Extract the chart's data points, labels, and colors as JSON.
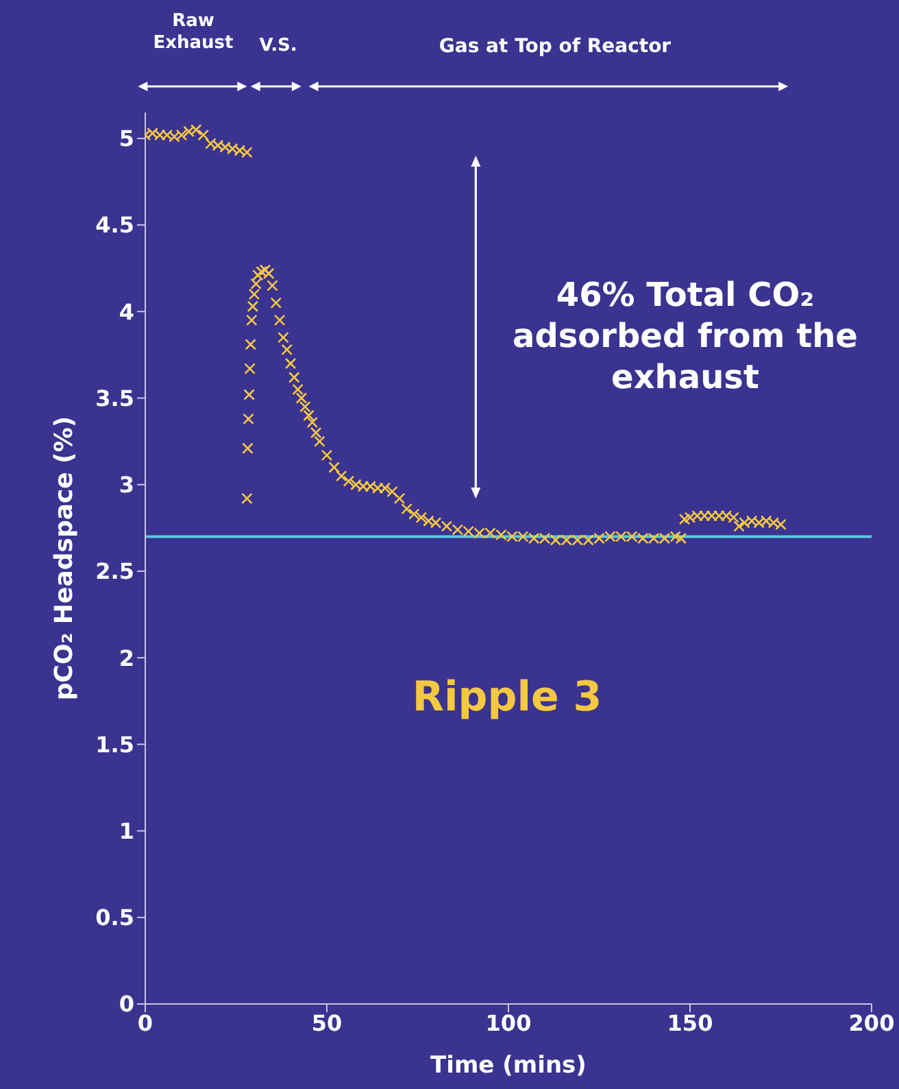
{
  "chart_data": {
    "type": "scatter",
    "xlabel": "Time (mins)",
    "ylabel": "pCO₂ Headspace (%)",
    "xlim": [
      0,
      200
    ],
    "xticks": [
      0,
      50,
      100,
      150,
      200
    ],
    "ylim": [
      0,
      5.15
    ],
    "yticks": [
      0,
      0.5,
      1,
      1.5,
      2,
      2.5,
      3,
      3.5,
      4,
      4.5,
      5
    ],
    "marker": "cross",
    "series": [
      {
        "color": "#f5c842",
        "x": [
          0,
          2,
          4,
          6,
          8,
          10,
          12,
          14,
          16,
          18,
          20,
          22,
          24,
          26,
          28,
          28,
          28.2,
          28.4,
          28.6,
          28.8,
          29,
          29.3,
          29.6,
          30,
          30.5,
          31,
          32,
          33,
          34,
          35,
          36,
          37,
          38,
          39,
          40,
          41,
          42,
          43,
          44,
          45,
          46,
          47,
          48,
          50,
          52,
          54,
          56,
          58,
          60,
          62,
          64,
          66,
          68,
          70,
          72,
          74,
          76,
          78,
          80,
          83,
          86,
          89,
          92,
          95,
          98,
          101,
          104,
          107,
          110,
          113,
          116,
          119,
          122,
          125,
          128,
          131,
          134,
          137,
          140,
          143,
          146,
          147.5,
          148.5,
          150,
          152,
          154,
          156,
          158,
          160,
          162,
          163.5,
          165,
          167,
          169,
          171,
          173,
          175
        ],
        "values": [
          5.02,
          5.03,
          5.02,
          5.02,
          5.01,
          5.02,
          5.04,
          5.05,
          5.02,
          4.97,
          4.96,
          4.95,
          4.94,
          4.93,
          4.92,
          2.92,
          3.21,
          3.38,
          3.52,
          3.67,
          3.81,
          3.95,
          4.03,
          4.1,
          4.16,
          4.21,
          4.23,
          4.24,
          4.22,
          4.15,
          4.05,
          3.95,
          3.85,
          3.78,
          3.7,
          3.62,
          3.55,
          3.5,
          3.45,
          3.4,
          3.36,
          3.3,
          3.25,
          3.17,
          3.1,
          3.05,
          3.02,
          3.0,
          2.99,
          2.99,
          2.98,
          2.98,
          2.96,
          2.92,
          2.86,
          2.83,
          2.81,
          2.79,
          2.78,
          2.76,
          2.74,
          2.73,
          2.72,
          2.72,
          2.71,
          2.7,
          2.7,
          2.69,
          2.69,
          2.68,
          2.68,
          2.68,
          2.68,
          2.69,
          2.7,
          2.7,
          2.7,
          2.69,
          2.69,
          2.69,
          2.7,
          2.69,
          2.8,
          2.81,
          2.82,
          2.82,
          2.82,
          2.82,
          2.82,
          2.81,
          2.76,
          2.78,
          2.79,
          2.78,
          2.79,
          2.78,
          2.77
        ]
      }
    ],
    "ref_lines": [
      {
        "axis": "y",
        "value": 2.7,
        "color": "#5bc8e0",
        "line_style": "solid"
      }
    ],
    "annotations": [
      "Raw Exhaust",
      "V.S.",
      "Gas at Top of Reactor",
      "46% Total CO₂ adsorbed from the exhaust",
      "Ripple 3"
    ]
  }
}
